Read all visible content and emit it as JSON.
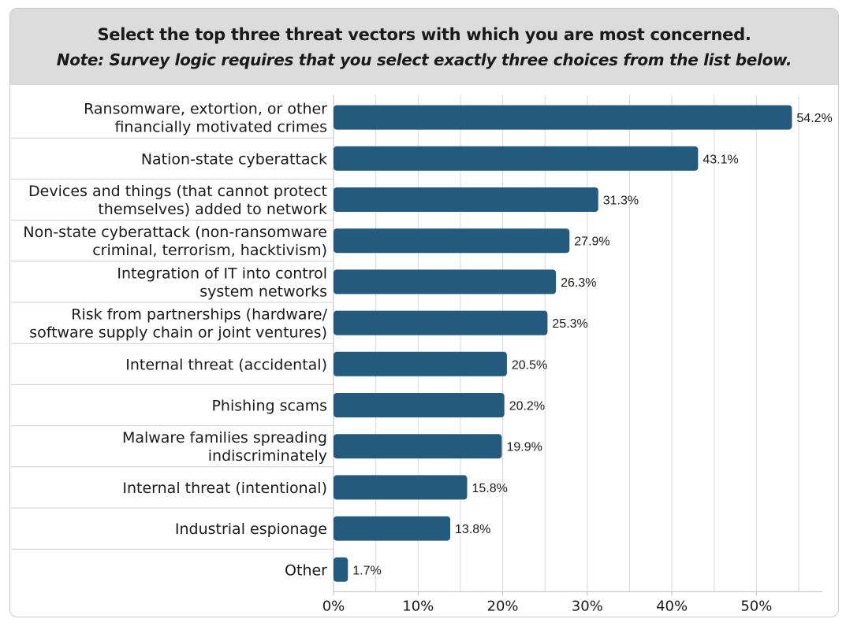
{
  "header": {
    "title": "Select the top three threat vectors with which you are most concerned.",
    "subtitle": "Note: Survey logic requires that you select exactly three choices from the list below."
  },
  "chart_data": {
    "type": "bar",
    "orientation": "horizontal",
    "title": "Select the top three threat vectors with which you are most concerned.",
    "subtitle": "Note: Survey logic requires that you select exactly three choices from the list below.",
    "categories": [
      [
        "Ransomware, extortion, or other",
        "financially motivated crimes"
      ],
      [
        "Nation-state cyberattack"
      ],
      [
        "Devices and things (that cannot protect",
        "themselves) added to network"
      ],
      [
        "Non-state cyberattack (non-ransomware",
        "criminal, terrorism, hacktivism)"
      ],
      [
        "Integration of IT into control",
        "system networks"
      ],
      [
        "Risk from partnerships (hardware/",
        "software supply chain or joint ventures)"
      ],
      [
        "Internal threat (accidental)"
      ],
      [
        "Phishing scams"
      ],
      [
        "Malware families spreading",
        "indiscriminately"
      ],
      [
        "Internal threat (intentional)"
      ],
      [
        "Industrial espionage"
      ],
      [
        "Other"
      ]
    ],
    "values": [
      54.2,
      43.1,
      31.3,
      27.9,
      26.3,
      25.3,
      20.5,
      20.2,
      19.9,
      15.8,
      13.8,
      1.7
    ],
    "value_labels": [
      "54.2%",
      "43.1%",
      "31.3%",
      "27.9%",
      "26.3%",
      "25.3%",
      "20.5%",
      "20.2%",
      "19.9%",
      "15.8%",
      "13.8%",
      "1.7%"
    ],
    "xlim": [
      0,
      57
    ],
    "x_ticks": [
      0,
      10,
      20,
      30,
      40,
      50
    ],
    "x_tick_labels": [
      "0%",
      "10%",
      "20%",
      "30%",
      "40%",
      "50%"
    ],
    "grid": true,
    "bar_color": "#245a7e"
  }
}
